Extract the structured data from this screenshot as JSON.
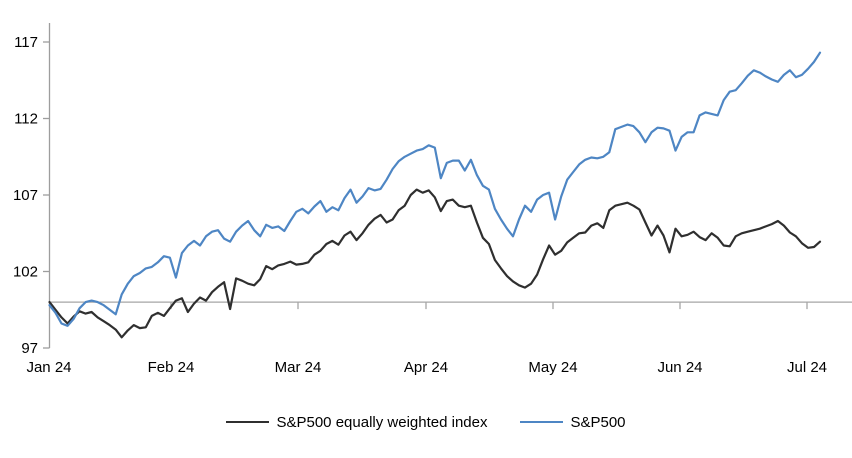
{
  "chart_data": {
    "type": "line",
    "title": "",
    "x_tick_labels": [
      "Jan 24",
      "Feb 24",
      "Mar 24",
      "Apr 24",
      "May 24",
      "Jun 24",
      "Jul 24"
    ],
    "y_tick_labels": [
      "97",
      "102",
      "107",
      "112",
      "117"
    ],
    "y_ticks": [
      97,
      102,
      107,
      112,
      117
    ],
    "ylim": [
      97,
      118.2
    ],
    "baseline_value": 100,
    "grid": false,
    "legend_position": "bottom",
    "axis_color": "#9d9d9d",
    "baseline_color": "#a6a6a6",
    "series": [
      {
        "name": "S&P500 equally weighted index",
        "color": "#2f2f2f",
        "values": [
          100.0,
          99.5,
          99.0,
          98.6,
          99.05,
          99.4,
          99.25,
          99.35,
          99.0,
          98.75,
          98.5,
          98.2,
          97.7,
          98.15,
          98.5,
          98.3,
          98.35,
          99.1,
          99.3,
          99.1,
          99.6,
          100.1,
          100.25,
          99.35,
          99.9,
          100.3,
          100.1,
          100.65,
          101.0,
          101.3,
          99.55,
          101.55,
          101.4,
          101.2,
          101.1,
          101.5,
          102.35,
          102.15,
          102.4,
          102.5,
          102.65,
          102.45,
          102.5,
          102.6,
          103.1,
          103.35,
          103.8,
          104.0,
          103.75,
          104.35,
          104.6,
          104.05,
          104.5,
          105.05,
          105.45,
          105.7,
          105.2,
          105.4,
          106.0,
          106.3,
          107.0,
          107.35,
          107.15,
          107.3,
          106.85,
          105.95,
          106.6,
          106.7,
          106.3,
          106.2,
          106.3,
          105.2,
          104.2,
          103.8,
          102.75,
          102.2,
          101.7,
          101.35,
          101.1,
          100.95,
          101.2,
          101.8,
          102.8,
          103.7,
          103.1,
          103.35,
          103.9,
          104.2,
          104.5,
          104.55,
          105.0,
          105.15,
          104.85,
          106.0,
          106.3,
          106.4,
          106.5,
          106.3,
          106.05,
          105.2,
          104.35,
          105.0,
          104.35,
          103.25,
          104.8,
          104.3,
          104.4,
          104.6,
          104.25,
          104.05,
          104.5,
          104.2,
          103.7,
          103.65,
          104.3,
          104.5,
          104.6,
          104.7,
          104.8,
          104.95,
          105.1,
          105.3,
          105.0,
          104.55,
          104.3,
          103.85,
          103.55,
          103.6,
          103.95
        ]
      },
      {
        "name": "S&P500",
        "color": "#4e86c4",
        "values": [
          99.8,
          99.3,
          98.6,
          98.45,
          98.9,
          99.6,
          100.0,
          100.1,
          100.0,
          99.8,
          99.5,
          99.2,
          100.5,
          101.2,
          101.7,
          101.9,
          102.2,
          102.3,
          102.6,
          103.0,
          102.9,
          101.6,
          103.2,
          103.7,
          104.0,
          103.7,
          104.3,
          104.6,
          104.7,
          104.15,
          103.95,
          104.6,
          105.0,
          105.3,
          104.7,
          104.3,
          105.05,
          104.85,
          104.95,
          104.65,
          105.3,
          105.9,
          106.1,
          105.8,
          106.25,
          106.6,
          105.9,
          106.2,
          106.0,
          106.8,
          107.35,
          106.5,
          106.9,
          107.45,
          107.3,
          107.4,
          108.0,
          108.7,
          109.2,
          109.5,
          109.7,
          109.9,
          110.0,
          110.25,
          110.1,
          108.1,
          109.1,
          109.25,
          109.25,
          108.6,
          109.3,
          108.3,
          107.6,
          107.35,
          106.1,
          105.4,
          104.8,
          104.3,
          105.4,
          106.3,
          105.9,
          106.7,
          107.0,
          107.15,
          105.4,
          106.9,
          108.0,
          108.5,
          109.0,
          109.3,
          109.45,
          109.4,
          109.5,
          109.8,
          111.3,
          111.45,
          111.6,
          111.5,
          111.1,
          110.45,
          111.1,
          111.4,
          111.35,
          111.2,
          109.9,
          110.8,
          111.1,
          111.1,
          112.2,
          112.4,
          112.3,
          112.2,
          113.2,
          113.75,
          113.85,
          114.3,
          114.8,
          115.15,
          115.0,
          114.75,
          114.55,
          114.4,
          114.85,
          115.15,
          114.7,
          114.85,
          115.25,
          115.7,
          116.3
        ]
      }
    ]
  }
}
